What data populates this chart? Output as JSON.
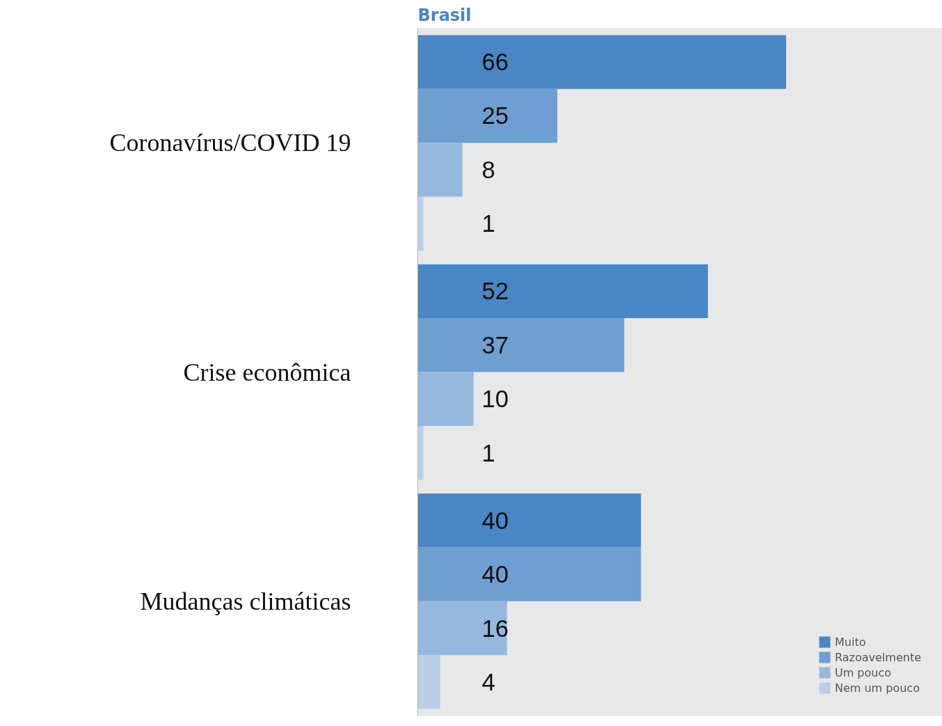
{
  "chart_data": {
    "type": "bar",
    "orientation": "horizontal",
    "title": "Brasil",
    "categories": [
      "Coronavírus/COVID 19",
      "Crise econômica",
      "Mudanças climáticas"
    ],
    "series": [
      {
        "name": "Muito",
        "color": "#4a86c5",
        "values": [
          66,
          52,
          40
        ]
      },
      {
        "name": "Razoavelmente",
        "color": "#6f9fd0",
        "values": [
          25,
          37,
          40
        ]
      },
      {
        "name": "Um pouco",
        "color": "#97b8de",
        "values": [
          8,
          10,
          16
        ]
      },
      {
        "name": "Nem um pouco",
        "color": "#b9cfe7",
        "values": [
          1,
          1,
          4
        ]
      }
    ],
    "xlim": [
      0,
      94
    ],
    "data_labels": true,
    "legend": "bottom right",
    "tick_labels": "y"
  }
}
